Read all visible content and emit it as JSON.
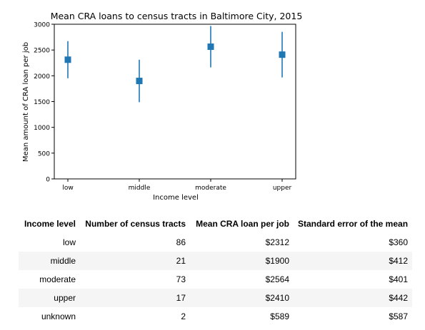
{
  "chart_data": {
    "type": "scatter",
    "title": "Mean CRA loans to census tracts in Baltimore City, 2015",
    "xlabel": "Income level",
    "ylabel": "Mean amount of CRA loan per job",
    "categories": [
      "low",
      "middle",
      "moderate",
      "upper"
    ],
    "values": [
      2312,
      1900,
      2564,
      2410
    ],
    "error_bars": [
      360,
      412,
      401,
      442
    ],
    "ylim": [
      0,
      3000
    ],
    "yticks": [
      "0",
      "500",
      "1000",
      "1500",
      "2000",
      "2500",
      "3000"
    ],
    "grid": false,
    "marker": "square",
    "color": "#1f77b4"
  },
  "table": {
    "columns": [
      "Income level",
      "Number of census tracts",
      "Mean CRA loan per job",
      "Standard error of the mean"
    ],
    "rows": [
      [
        "low",
        "86",
        "$2312",
        "$360"
      ],
      [
        "middle",
        "21",
        "$1900",
        "$412"
      ],
      [
        "moderate",
        "73",
        "$2564",
        "$401"
      ],
      [
        "upper",
        "17",
        "$2410",
        "$442"
      ],
      [
        "unknown",
        "2",
        "$589",
        "$587"
      ]
    ]
  }
}
